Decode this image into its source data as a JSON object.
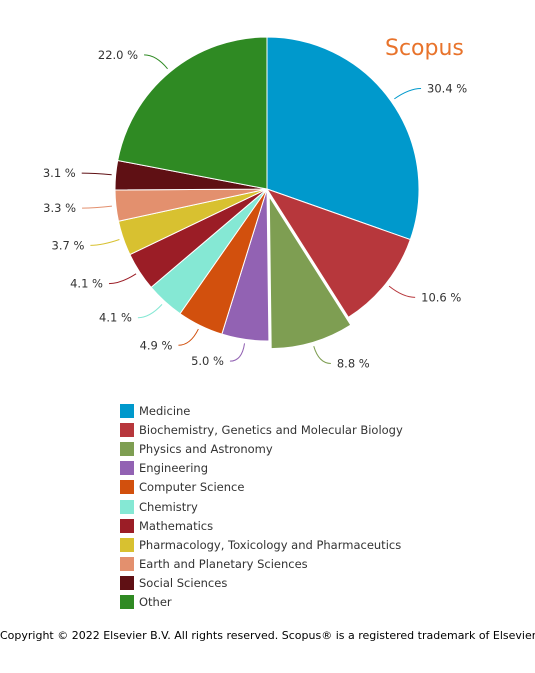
{
  "brand": "Scopus",
  "copyright": "Copyright © 2022 Elsevier B.V. All rights reserved. Scopus® is a registered trademark of Elsevier B.V.",
  "chart_data": {
    "type": "pie",
    "title": "",
    "legend_position": "bottom",
    "slices": [
      {
        "name": "Medicine",
        "value": 30.4,
        "label": "30.4 %",
        "color": "#0099cc",
        "exploded": false
      },
      {
        "name": "Biochemistry, Genetics and Molecular Biology",
        "value": 10.6,
        "label": "10.6 %",
        "color": "#b7373c",
        "exploded": false
      },
      {
        "name": "Physics and Astronomy",
        "value": 8.8,
        "label": "8.8 %",
        "color": "#7e9e52",
        "exploded": true
      },
      {
        "name": "Engineering",
        "value": 5.0,
        "label": "5.0 %",
        "color": "#9262b3",
        "exploded": false
      },
      {
        "name": "Computer Science",
        "value": 4.9,
        "label": "4.9 %",
        "color": "#d2500d",
        "exploded": false
      },
      {
        "name": "Chemistry",
        "value": 4.1,
        "label": "4.1 %",
        "color": "#85e8d4",
        "exploded": false
      },
      {
        "name": "Mathematics",
        "value": 4.1,
        "label": "4.1 %",
        "color": "#9b1d26",
        "exploded": false
      },
      {
        "name": "Pharmacology, Toxicology and Pharmaceutics",
        "value": 3.7,
        "label": "3.7 %",
        "color": "#d8c130",
        "exploded": false
      },
      {
        "name": "Earth and Planetary Sciences",
        "value": 3.3,
        "label": "3.3 %",
        "color": "#e3906e",
        "exploded": false
      },
      {
        "name": "Social Sciences",
        "value": 3.1,
        "label": "3.1 %",
        "color": "#5f1014",
        "exploded": false
      },
      {
        "name": "Other",
        "value": 22.0,
        "label": "22.0 %",
        "color": "#2f8a23",
        "exploded": false
      }
    ]
  }
}
